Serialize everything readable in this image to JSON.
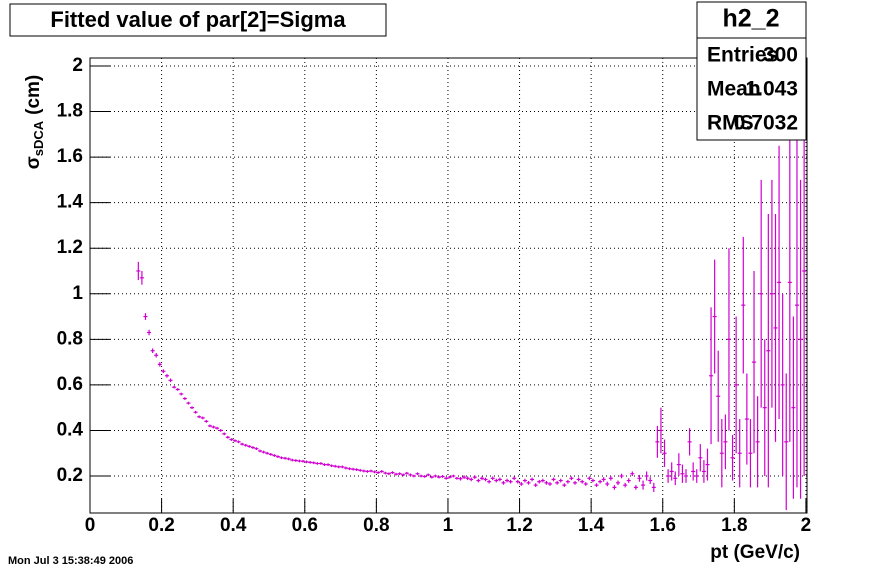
{
  "chart_data": {
    "type": "errorbar",
    "title": "Fitted value of par[2]=Sigma",
    "xlabel": "pt (GeV/c)",
    "ylabel": {
      "symbol": "σ",
      "subscript": "sDCA",
      "unit": "(cm)"
    },
    "timestamp": "Mon Jul  3 15:38:49 2006",
    "stats": {
      "name": "h2_2",
      "rows": [
        {
          "label": "Entries",
          "value": 300
        },
        {
          "label": "Mean",
          "value": 1.043
        },
        {
          "label": "RMS",
          "value": 0.7032
        }
      ]
    },
    "color": "#d100d1",
    "grid": true,
    "xlim": [
      0,
      2.003
    ],
    "ylim": [
      0.0376,
      2.035
    ],
    "xticks": [
      0,
      0.2,
      0.4,
      0.6,
      0.8,
      1,
      1.2,
      1.4,
      1.6,
      1.8,
      2
    ],
    "yticks": [
      0.2,
      0.4,
      0.6,
      0.8,
      1,
      1.2,
      1.4,
      1.6,
      1.8,
      2
    ],
    "x": [
      0.135,
      0.145,
      0.155,
      0.165,
      0.175,
      0.185,
      0.195,
      0.205,
      0.215,
      0.225,
      0.235,
      0.245,
      0.255,
      0.265,
      0.275,
      0.285,
      0.295,
      0.305,
      0.315,
      0.325,
      0.335,
      0.345,
      0.355,
      0.365,
      0.375,
      0.385,
      0.395,
      0.405,
      0.415,
      0.425,
      0.435,
      0.445,
      0.455,
      0.465,
      0.475,
      0.485,
      0.495,
      0.505,
      0.515,
      0.525,
      0.535,
      0.545,
      0.555,
      0.565,
      0.575,
      0.585,
      0.595,
      0.605,
      0.615,
      0.625,
      0.635,
      0.645,
      0.655,
      0.665,
      0.675,
      0.685,
      0.695,
      0.705,
      0.715,
      0.725,
      0.735,
      0.745,
      0.755,
      0.765,
      0.775,
      0.785,
      0.795,
      0.805,
      0.815,
      0.825,
      0.835,
      0.845,
      0.855,
      0.865,
      0.875,
      0.885,
      0.895,
      0.905,
      0.915,
      0.925,
      0.935,
      0.945,
      0.955,
      0.965,
      0.975,
      0.985,
      0.995,
      1.005,
      1.015,
      1.025,
      1.035,
      1.045,
      1.055,
      1.065,
      1.075,
      1.085,
      1.095,
      1.105,
      1.115,
      1.125,
      1.135,
      1.145,
      1.155,
      1.165,
      1.175,
      1.185,
      1.195,
      1.205,
      1.215,
      1.225,
      1.235,
      1.245,
      1.255,
      1.265,
      1.275,
      1.285,
      1.295,
      1.305,
      1.315,
      1.325,
      1.335,
      1.345,
      1.355,
      1.365,
      1.375,
      1.385,
      1.395,
      1.405,
      1.415,
      1.425,
      1.435,
      1.445,
      1.455,
      1.465,
      1.475,
      1.485,
      1.495,
      1.505,
      1.515,
      1.525,
      1.535,
      1.545,
      1.555,
      1.565,
      1.575,
      1.585,
      1.595,
      1.605,
      1.615,
      1.625,
      1.635,
      1.645,
      1.655,
      1.665,
      1.675,
      1.685,
      1.695,
      1.705,
      1.715,
      1.725,
      1.735,
      1.745,
      1.755,
      1.765,
      1.775,
      1.785,
      1.795,
      1.805,
      1.815,
      1.825,
      1.835,
      1.845,
      1.855,
      1.865,
      1.875,
      1.885,
      1.895,
      1.905,
      1.915,
      1.925,
      1.935,
      1.945,
      1.955,
      1.965,
      1.975,
      1.985,
      1.995
    ],
    "values": [
      1.1,
      1.07,
      0.9,
      0.83,
      0.75,
      0.73,
      0.69,
      0.66,
      0.64,
      0.62,
      0.59,
      0.58,
      0.56,
      0.54,
      0.52,
      0.5,
      0.48,
      0.46,
      0.455,
      0.44,
      0.42,
      0.415,
      0.41,
      0.4,
      0.385,
      0.37,
      0.36,
      0.355,
      0.35,
      0.34,
      0.335,
      0.33,
      0.325,
      0.32,
      0.31,
      0.305,
      0.3,
      0.295,
      0.29,
      0.285,
      0.28,
      0.278,
      0.275,
      0.27,
      0.268,
      0.266,
      0.265,
      0.262,
      0.26,
      0.258,
      0.255,
      0.255,
      0.25,
      0.25,
      0.245,
      0.243,
      0.24,
      0.24,
      0.235,
      0.232,
      0.23,
      0.228,
      0.225,
      0.222,
      0.22,
      0.222,
      0.218,
      0.215,
      0.22,
      0.213,
      0.21,
      0.215,
      0.208,
      0.21,
      0.205,
      0.212,
      0.205,
      0.2,
      0.21,
      0.2,
      0.198,
      0.205,
      0.195,
      0.2,
      0.195,
      0.198,
      0.19,
      0.195,
      0.2,
      0.19,
      0.188,
      0.195,
      0.19,
      0.185,
      0.195,
      0.18,
      0.19,
      0.185,
      0.175,
      0.19,
      0.18,
      0.185,
      0.17,
      0.18,
      0.175,
      0.19,
      0.175,
      0.165,
      0.18,
      0.17,
      0.185,
      0.16,
      0.175,
      0.18,
      0.17,
      0.165,
      0.185,
      0.17,
      0.18,
      0.16,
      0.175,
      0.19,
      0.17,
      0.185,
      0.175,
      0.165,
      0.19,
      0.18,
      0.16,
      0.175,
      0.185,
      0.165,
      0.19,
      0.15,
      0.17,
      0.2,
      0.16,
      0.18,
      0.21,
      0.15,
      0.19,
      0.16,
      0.2,
      0.18,
      0.15,
      0.35,
      0.4,
      0.3,
      0.2,
      0.22,
      0.19,
      0.25,
      0.21,
      0.2,
      0.35,
      0.22,
      0.2,
      0.28,
      0.22,
      0.25,
      0.64,
      0.9,
      0.55,
      0.3,
      0.35,
      0.8,
      0.28,
      0.6,
      0.3,
      0.95,
      0.45,
      0.3,
      0.7,
      0.35,
      1.0,
      0.5,
      0.75,
      1.0,
      0.85,
      1.05,
      0.6,
      0.35,
      1.05,
      0.5,
      0.95,
      0.8,
      1.1
    ],
    "errors": [
      0.04,
      0.03,
      0.015,
      0.012,
      0.01,
      0.01,
      0.01,
      0.008,
      0.008,
      0.008,
      0.006,
      0.006,
      0.006,
      0.006,
      0.006,
      0.006,
      0.006,
      0.006,
      0.006,
      0.006,
      0.006,
      0.006,
      0.006,
      0.006,
      0.006,
      0.006,
      0.006,
      0.006,
      0.006,
      0.006,
      0.006,
      0.006,
      0.006,
      0.006,
      0.006,
      0.006,
      0.006,
      0.006,
      0.006,
      0.006,
      0.006,
      0.006,
      0.006,
      0.006,
      0.006,
      0.006,
      0.006,
      0.006,
      0.006,
      0.006,
      0.006,
      0.006,
      0.006,
      0.006,
      0.006,
      0.006,
      0.006,
      0.006,
      0.006,
      0.006,
      0.006,
      0.006,
      0.006,
      0.006,
      0.006,
      0.006,
      0.006,
      0.006,
      0.006,
      0.006,
      0.006,
      0.006,
      0.006,
      0.006,
      0.006,
      0.006,
      0.006,
      0.006,
      0.006,
      0.006,
      0.006,
      0.006,
      0.006,
      0.006,
      0.006,
      0.006,
      0.006,
      0.006,
      0.006,
      0.006,
      0.008,
      0.008,
      0.008,
      0.008,
      0.008,
      0.008,
      0.008,
      0.008,
      0.008,
      0.008,
      0.008,
      0.008,
      0.008,
      0.008,
      0.008,
      0.008,
      0.008,
      0.008,
      0.008,
      0.008,
      0.008,
      0.008,
      0.008,
      0.008,
      0.008,
      0.008,
      0.008,
      0.008,
      0.008,
      0.008,
      0.008,
      0.008,
      0.008,
      0.008,
      0.008,
      0.008,
      0.008,
      0.008,
      0.008,
      0.008,
      0.01,
      0.01,
      0.01,
      0.01,
      0.01,
      0.01,
      0.01,
      0.01,
      0.01,
      0.01,
      0.015,
      0.02,
      0.02,
      0.015,
      0.02,
      0.07,
      0.1,
      0.06,
      0.03,
      0.04,
      0.03,
      0.05,
      0.04,
      0.03,
      0.06,
      0.04,
      0.03,
      0.06,
      0.05,
      0.07,
      0.3,
      0.25,
      0.2,
      0.15,
      0.12,
      0.4,
      0.1,
      0.3,
      0.15,
      0.3,
      0.2,
      0.15,
      0.4,
      0.2,
      0.5,
      0.3,
      0.6,
      0.5,
      0.5,
      0.6,
      0.4,
      0.3,
      0.7,
      0.4,
      0.8,
      0.7,
      0.9
    ]
  }
}
